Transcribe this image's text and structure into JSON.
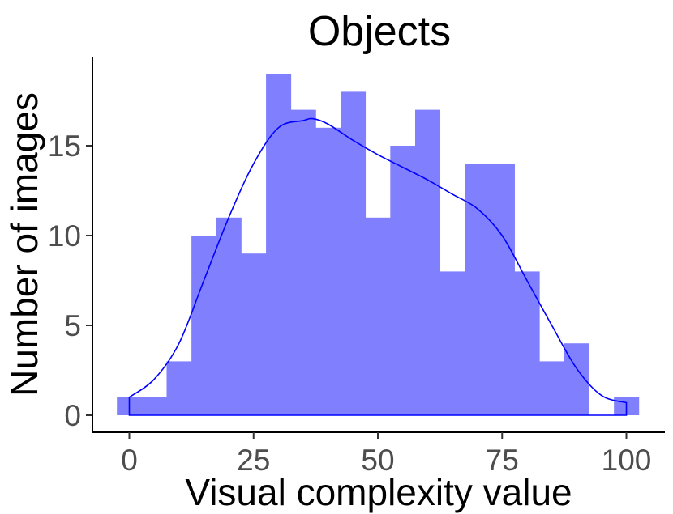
{
  "chart_data": {
    "type": "bar",
    "title": "Objects",
    "xlabel": "Visual complexity value",
    "ylabel": "Number of images",
    "xlim": [
      -2.5,
      102.5
    ],
    "ylim": [
      0,
      19
    ],
    "x_ticks": [
      0,
      25,
      50,
      75,
      100
    ],
    "y_ticks": [
      0,
      5,
      10,
      15
    ],
    "bin_width": 5,
    "bins": [
      {
        "center": 0,
        "count": 1
      },
      {
        "center": 5,
        "count": 1
      },
      {
        "center": 10,
        "count": 3
      },
      {
        "center": 15,
        "count": 10
      },
      {
        "center": 20,
        "count": 11
      },
      {
        "center": 25,
        "count": 9
      },
      {
        "center": 30,
        "count": 19
      },
      {
        "center": 35,
        "count": 17
      },
      {
        "center": 40,
        "count": 16
      },
      {
        "center": 45,
        "count": 18
      },
      {
        "center": 50,
        "count": 11
      },
      {
        "center": 55,
        "count": 15
      },
      {
        "center": 60,
        "count": 17
      },
      {
        "center": 65,
        "count": 8
      },
      {
        "center": 70,
        "count": 14
      },
      {
        "center": 75,
        "count": 14
      },
      {
        "center": 80,
        "count": 8
      },
      {
        "center": 85,
        "count": 3
      },
      {
        "center": 90,
        "count": 4
      },
      {
        "center": 95,
        "count": 0
      },
      {
        "center": 100,
        "count": 1
      }
    ],
    "density_curve": {
      "x": [
        0,
        5,
        10,
        15,
        20,
        25,
        30,
        35,
        37,
        40,
        45,
        50,
        55,
        60,
        65,
        70,
        75,
        80,
        85,
        90,
        95,
        100
      ],
      "y": [
        1,
        2,
        4,
        7.5,
        11,
        14,
        16,
        16.4,
        16.5,
        16.2,
        15.3,
        14.5,
        13.8,
        13.1,
        12.3,
        11.5,
        10,
        7.5,
        5,
        2.6,
        1.1,
        0.7
      ]
    },
    "colors": {
      "bar_fill": "#8080ff",
      "density_line": "#0000ff"
    },
    "grid": false,
    "legend": "none"
  }
}
